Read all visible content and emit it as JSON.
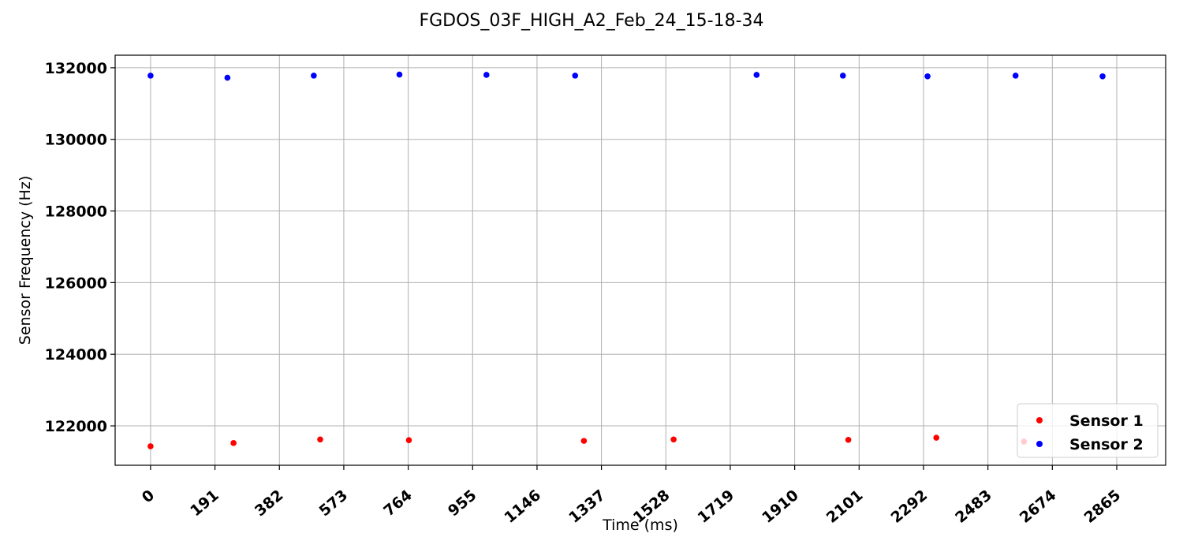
{
  "chart_data": {
    "type": "scatter",
    "title": "FGDOS_03F_HIGH_A2_Feb_24_15-18-34",
    "xlabel": "Time (ms)",
    "ylabel": "Sensor Frequency (Hz)",
    "xlim": [
      -105,
      3010
    ],
    "ylim": [
      120900,
      132350
    ],
    "x_ticks": [
      0,
      191,
      382,
      573,
      764,
      955,
      1146,
      1337,
      1528,
      1719,
      1910,
      2101,
      2292,
      2483,
      2674,
      2865
    ],
    "y_ticks": [
      122000,
      124000,
      126000,
      128000,
      130000,
      132000
    ],
    "grid": true,
    "legend_position": "lower-right",
    "series": [
      {
        "name": "Sensor 1",
        "color": "#ff0000",
        "x": [
          0,
          246,
          503,
          766,
          1285,
          1551,
          2069,
          2330,
          2590
        ],
        "y": [
          121430,
          121520,
          121620,
          121600,
          121580,
          121620,
          121610,
          121670,
          121560
        ]
      },
      {
        "name": "Sensor 2",
        "color": "#0000ff",
        "x": [
          0,
          228,
          484,
          738,
          996,
          1259,
          1797,
          2053,
          2304,
          2565,
          2823
        ],
        "y": [
          131780,
          131720,
          131780,
          131810,
          131800,
          131780,
          131800,
          131780,
          131760,
          131780,
          131760
        ]
      }
    ]
  }
}
